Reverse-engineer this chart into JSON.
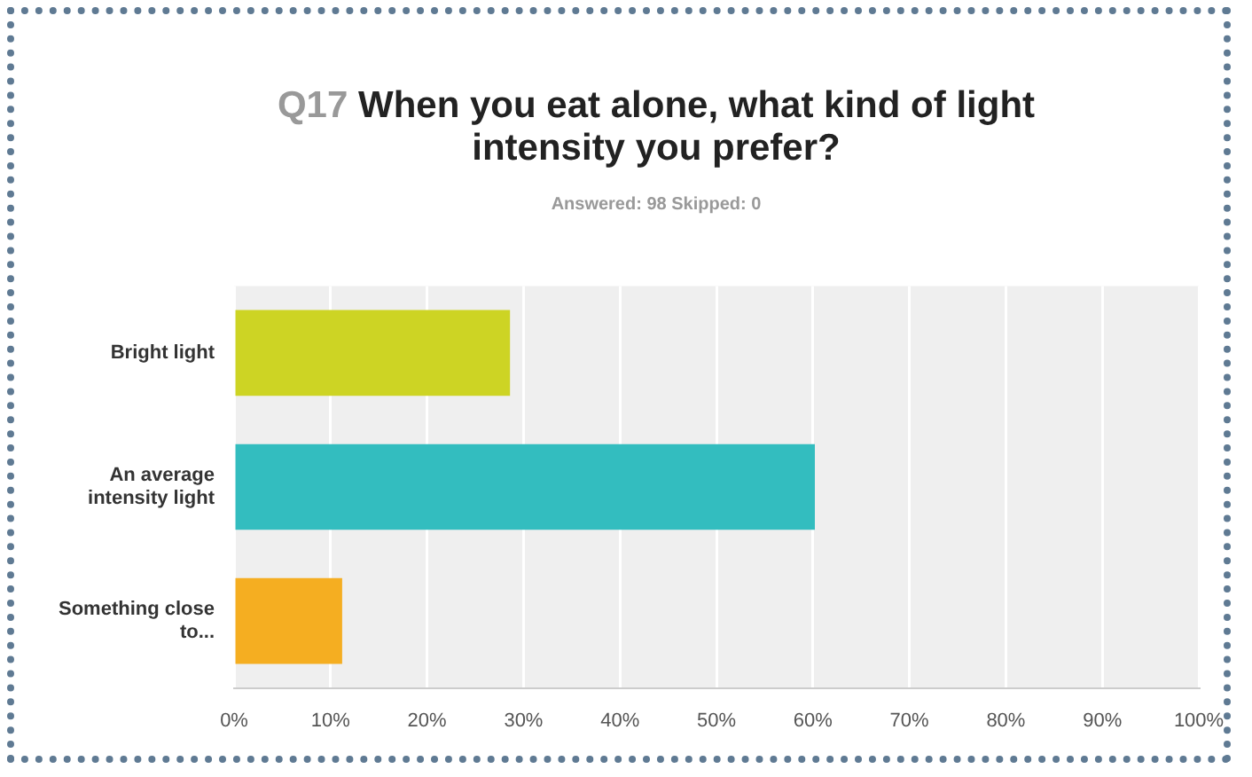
{
  "chart_data": {
    "type": "bar",
    "orientation": "horizontal",
    "title": "Q17 When you eat alone, what kind of light intensity you prefer?",
    "subtitle": "Answered: 98    Skipped: 0",
    "categories": [
      "Bright light",
      "An average intensity light",
      "Something close to..."
    ],
    "values": [
      28.6,
      60.2,
      11.2
    ],
    "colors": [
      "#cdd424",
      "#33bdbf",
      "#f5ae21"
    ],
    "xlim": [
      0,
      100
    ],
    "xticks": [
      {
        "value": 0,
        "label": "0%"
      },
      {
        "value": 10,
        "label": "10%"
      },
      {
        "value": 20,
        "label": "20%"
      },
      {
        "value": 30,
        "label": "30%"
      },
      {
        "value": 40,
        "label": "40%"
      },
      {
        "value": 50,
        "label": "50%"
      },
      {
        "value": 60,
        "label": "60%"
      },
      {
        "value": 70,
        "label": "70%"
      },
      {
        "value": 80,
        "label": "80%"
      },
      {
        "value": 90,
        "label": "90%"
      },
      {
        "value": 100,
        "label": "100%"
      }
    ],
    "grid": "x",
    "legend": false
  }
}
